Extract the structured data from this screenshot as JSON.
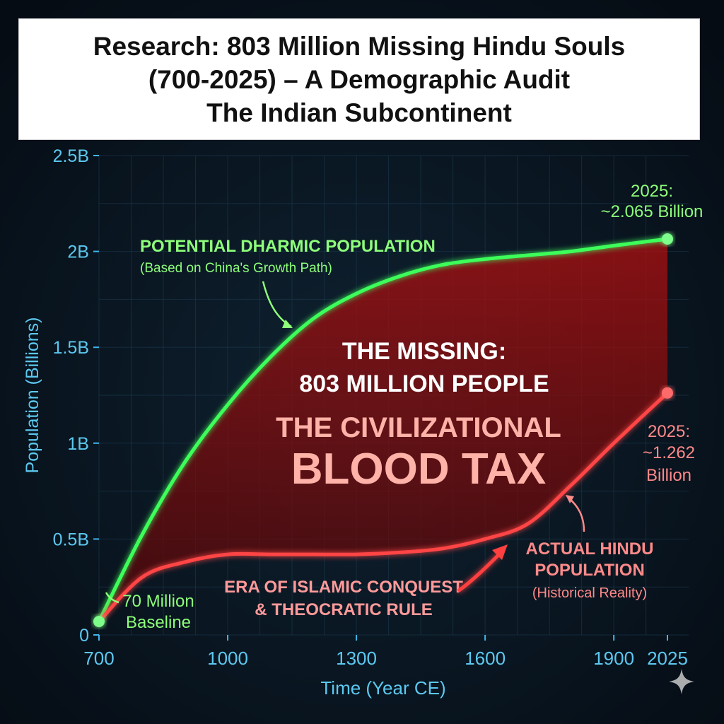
{
  "header": {
    "title_lines": [
      "Research: 803 Million Missing Hindu Souls",
      "(700-2025) – A Demographic Audit",
      "The Indian Subcontinent"
    ]
  },
  "chart_data": {
    "type": "line",
    "title": "Research: 803 Million Missing Hindu Souls (700-2025) – A Demographic Audit The Indian Subcontinent",
    "xlabel": "Time (Year CE)",
    "ylabel": "Population (Billions)",
    "xlim": [
      700,
      2025
    ],
    "ylim": [
      0,
      2.5
    ],
    "x_ticks": [
      700,
      1000,
      1300,
      1600,
      1900,
      2025
    ],
    "y_ticks": [
      0,
      0.5,
      1,
      1.5,
      2,
      2.5
    ],
    "y_tick_labels": [
      "0",
      "0.5B",
      "1B",
      "1.5B",
      "2B",
      "2.5B"
    ],
    "grid": true,
    "series": [
      {
        "name": "Potential Dharmic Population",
        "color": "#3dff5a",
        "x": [
          700,
          800,
          900,
          1000,
          1100,
          1200,
          1300,
          1400,
          1500,
          1600,
          1700,
          1800,
          1900,
          2025
        ],
        "y": [
          0.07,
          0.52,
          0.9,
          1.2,
          1.45,
          1.65,
          1.78,
          1.87,
          1.93,
          1.96,
          1.98,
          2.0,
          2.03,
          2.065
        ]
      },
      {
        "name": "Actual Hindu Population",
        "color": "#ff4444",
        "x": [
          700,
          800,
          900,
          1000,
          1100,
          1200,
          1300,
          1400,
          1500,
          1600,
          1700,
          1800,
          1900,
          2025
        ],
        "y": [
          0.07,
          0.3,
          0.38,
          0.42,
          0.42,
          0.42,
          0.42,
          0.43,
          0.45,
          0.5,
          0.58,
          0.78,
          1.0,
          1.262
        ]
      }
    ],
    "annotations": {
      "potential_title": "POTENTIAL DHARMIC POPULATION",
      "potential_sub": "(Based on China's Growth Path)",
      "green_end_line1": "2025:",
      "green_end_line2": "~2.065 Billion",
      "missing_line1": "THE MISSING:",
      "missing_line2": "803 MILLION PEOPLE",
      "blood_line1": "THE CIVILIZATIONAL",
      "blood_line2": "BLOOD TAX",
      "red_end_line1": "2025:",
      "red_end_line2": "~1.262",
      "red_end_line3": "Billion",
      "actual_line1": "ACTUAL HINDU",
      "actual_line2": "POPULATION",
      "actual_line3": "(Historical Reality)",
      "era_line1": "ERA OF ISLAMIC CONQUEST",
      "era_line2": "& THEOCRATIC RULE",
      "baseline_line1": "70 Million",
      "baseline_line2": "Baseline"
    }
  }
}
